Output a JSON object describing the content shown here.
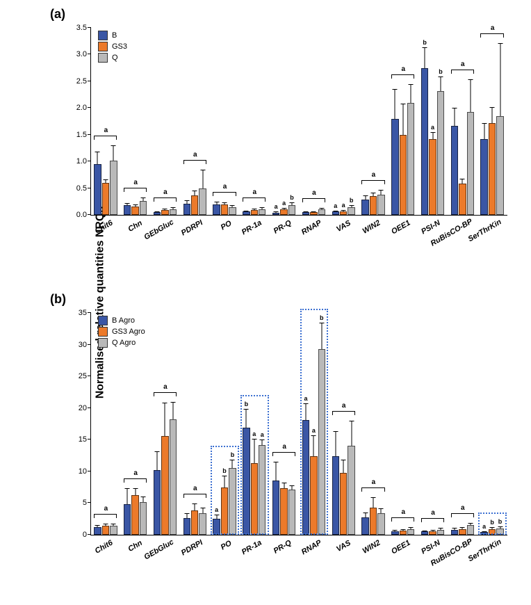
{
  "y_axis_label": "Normalised relative quantities NRQs",
  "categories": [
    "Chit6",
    "Chn",
    "GEbGluc",
    "PDRPI",
    "PO",
    "PR-1a",
    "PR-Q",
    "RNAP",
    "VAS",
    "WIN2",
    "OEE1",
    "PSI-N",
    "RuBisCO-BP",
    "SerThrKin"
  ],
  "series_colors": {
    "B": "#3a56a5",
    "GS3": "#ec7a2a",
    "Q": "#b9b9b9"
  },
  "panelA": {
    "label": "(a)",
    "ymax": 3.5,
    "ytick_step": 0.5,
    "legend": [
      {
        "key": "B",
        "label": "B"
      },
      {
        "key": "GS3",
        "label": "GS3"
      },
      {
        "key": "Q",
        "label": "Q"
      }
    ],
    "data": {
      "Chit6": {
        "B": 0.95,
        "GS3": 0.6,
        "Q": 1.02,
        "err": {
          "B": 0.23,
          "GS3": 0.07,
          "Q": 0.28
        },
        "group_sig": "a"
      },
      "Chn": {
        "B": 0.18,
        "GS3": 0.15,
        "Q": 0.26,
        "err": {
          "B": 0.04,
          "GS3": 0.04,
          "Q": 0.06
        },
        "group_sig": "a"
      },
      "GEbGluc": {
        "B": 0.05,
        "GS3": 0.09,
        "Q": 0.11,
        "err": {
          "B": 0.02,
          "GS3": 0.03,
          "Q": 0.03
        },
        "group_sig": "a"
      },
      "PDRPI": {
        "B": 0.21,
        "GS3": 0.36,
        "Q": 0.5,
        "err": {
          "B": 0.06,
          "GS3": 0.09,
          "Q": 0.34
        },
        "group_sig": "a"
      },
      "PO": {
        "B": 0.19,
        "GS3": 0.19,
        "Q": 0.14,
        "err": {
          "B": 0.06,
          "GS3": 0.05,
          "Q": 0.04
        },
        "group_sig": "a"
      },
      "PR-1a": {
        "B": 0.06,
        "GS3": 0.09,
        "Q": 0.11,
        "err": {
          "B": 0.02,
          "GS3": 0.03,
          "Q": 0.03
        },
        "group_sig": "a"
      },
      "PR-Q": {
        "B": 0.04,
        "GS3": 0.1,
        "Q": 0.18,
        "err": {
          "B": 0.02,
          "GS3": 0.03,
          "Q": 0.05
        },
        "bar_sig": {
          "B": "a",
          "GS3": "a",
          "Q": "b"
        }
      },
      "RNAP": {
        "B": 0.05,
        "GS3": 0.05,
        "Q": 0.1,
        "err": {
          "B": 0.02,
          "GS3": 0.02,
          "Q": 0.03
        },
        "group_sig": "a"
      },
      "VAS": {
        "B": 0.06,
        "GS3": 0.07,
        "Q": 0.14,
        "err": {
          "B": 0.02,
          "GS3": 0.02,
          "Q": 0.04
        },
        "bar_sig": {
          "B": "a",
          "GS3": "a",
          "Q": "b"
        }
      },
      "WIN2": {
        "B": 0.29,
        "GS3": 0.35,
        "Q": 0.38,
        "err": {
          "B": 0.08,
          "GS3": 0.07,
          "Q": 0.09
        },
        "group_sig": "a"
      },
      "OEE1": {
        "B": 1.79,
        "GS3": 1.5,
        "Q": 2.1,
        "err": {
          "B": 0.56,
          "GS3": 0.58,
          "Q": 0.35
        },
        "group_sig": "a"
      },
      "PSI-N": {
        "B": 2.75,
        "GS3": 1.42,
        "Q": 2.31,
        "err": {
          "B": 0.38,
          "GS3": 0.13,
          "Q": 0.28
        },
        "bar_sig": {
          "B": "b",
          "GS3": "a",
          "Q": "b"
        }
      },
      "RuBisCO-BP": {
        "B": 1.66,
        "GS3": 0.59,
        "Q": 1.92,
        "err": {
          "B": 0.35,
          "GS3": 0.09,
          "Q": 0.62
        },
        "group_sig": "a"
      },
      "SerThrKin": {
        "B": 1.42,
        "GS3": 1.72,
        "Q": 1.85,
        "err": {
          "B": 0.3,
          "GS3": 0.3,
          "Q": 1.37
        },
        "group_sig": "a"
      }
    }
  },
  "panelB": {
    "label": "(b)",
    "ymax": 35,
    "ytick_step": 5,
    "legend": [
      {
        "key": "B",
        "label": "B Agro"
      },
      {
        "key": "GS3",
        "label": "GS3 Agro"
      },
      {
        "key": "Q",
        "label": "Q Agro"
      }
    ],
    "highlight": [
      "PO",
      "PR-1a",
      "RNAP",
      "SerThrKin"
    ],
    "highlight_color": "#3b6fd1",
    "data": {
      "Chit6": {
        "B": 1.2,
        "GS3": 1.4,
        "Q": 1.4,
        "err": {
          "B": 0.3,
          "GS3": 0.4,
          "Q": 0.4
        },
        "group_sig": "a"
      },
      "Chn": {
        "B": 4.8,
        "GS3": 6.3,
        "Q": 5.2,
        "err": {
          "B": 2.5,
          "GS3": 1.0,
          "Q": 0.8
        },
        "group_sig": "a"
      },
      "GEbGluc": {
        "B": 10.2,
        "GS3": 15.6,
        "Q": 18.2,
        "err": {
          "B": 3.0,
          "GS3": 5.3,
          "Q": 2.8
        },
        "group_sig": "a"
      },
      "PDRPI": {
        "B": 2.6,
        "GS3": 3.8,
        "Q": 3.4,
        "err": {
          "B": 0.8,
          "GS3": 1.1,
          "Q": 0.9
        },
        "group_sig": "a"
      },
      "PO": {
        "B": 2.5,
        "GS3": 7.5,
        "Q": 10.5,
        "err": {
          "B": 0.7,
          "GS3": 1.8,
          "Q": 1.3
        },
        "bar_sig": {
          "B": "a",
          "GS3": "b",
          "Q": "b"
        }
      },
      "PR-1a": {
        "B": 16.9,
        "GS3": 11.3,
        "Q": 14.2,
        "err": {
          "B": 3.0,
          "GS3": 3.8,
          "Q": 0.8
        },
        "bar_sig": {
          "B": "b",
          "GS3": "a",
          "Q": "a"
        }
      },
      "PR-Q": {
        "B": 8.6,
        "GS3": 7.4,
        "Q": 7.1,
        "err": {
          "B": 2.9,
          "GS3": 0.8,
          "Q": 0.7
        },
        "group_sig": "a"
      },
      "RNAP": {
        "B": 18.1,
        "GS3": 12.4,
        "Q": 29.3,
        "err": {
          "B": 2.6,
          "GS3": 3.3,
          "Q": 4.2
        },
        "bar_sig": {
          "B": "a",
          "GS3": "a",
          "Q": "b"
        }
      },
      "VAS": {
        "B": 12.4,
        "GS3": 9.8,
        "Q": 14.0,
        "err": {
          "B": 4.0,
          "GS3": 2.0,
          "Q": 4.0
        },
        "group_sig": "a"
      },
      "WIN2": {
        "B": 2.7,
        "GS3": 4.3,
        "Q": 3.4,
        "err": {
          "B": 0.8,
          "GS3": 1.6,
          "Q": 0.8
        },
        "group_sig": "a"
      },
      "OEE1": {
        "B": 0.6,
        "GS3": 0.7,
        "Q": 0.9,
        "err": {
          "B": 0.2,
          "GS3": 0.2,
          "Q": 0.3
        },
        "group_sig": "a"
      },
      "PSI-N": {
        "B": 0.5,
        "GS3": 0.6,
        "Q": 0.8,
        "err": {
          "B": 0.2,
          "GS3": 0.2,
          "Q": 0.3
        },
        "group_sig": "a"
      },
      "RuBisCO-BP": {
        "B": 0.8,
        "GS3": 0.9,
        "Q": 1.5,
        "err": {
          "B": 0.3,
          "GS3": 0.3,
          "Q": 0.4
        },
        "group_sig": "a"
      },
      "SerThrKin": {
        "B": 0.4,
        "GS3": 0.9,
        "Q": 1.0,
        "err": {
          "B": 0.1,
          "GS3": 0.3,
          "Q": 0.3
        },
        "bar_sig": {
          "B": "a",
          "GS3": "b",
          "Q": "b"
        }
      }
    }
  }
}
